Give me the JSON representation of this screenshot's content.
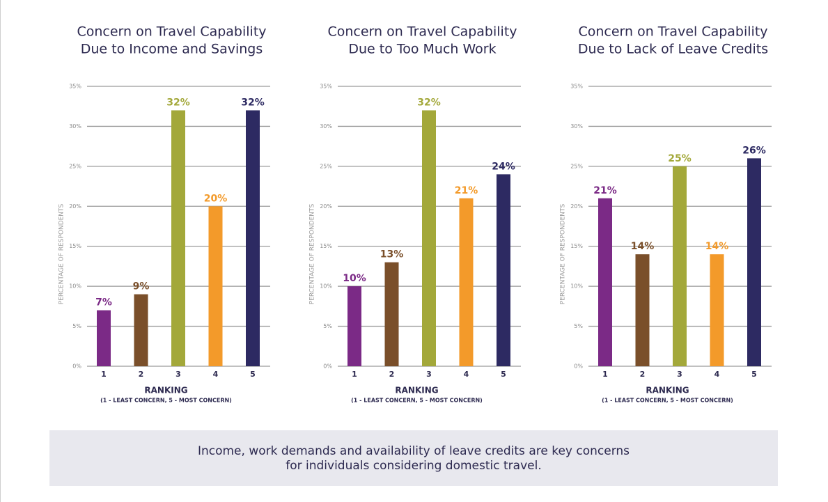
{
  "chart_data": [
    {
      "type": "bar",
      "title": [
        "Concern on Travel Capability",
        "Due to Income and Savings"
      ],
      "ylabel": "PERCENTAGE OF RESPONDENTS",
      "xlabel": "RANKING",
      "xsublabel": "(1 - LEAST CONCERN, 5 - MOST CONCERN)",
      "categories": [
        "1",
        "2",
        "3",
        "4",
        "5"
      ],
      "values": [
        7,
        9,
        32,
        20,
        32
      ],
      "value_labels": [
        "7%",
        "9%",
        "32%",
        "20%",
        "32%"
      ],
      "colors": [
        "#7b2a86",
        "#7a4f2a",
        "#a3a83a",
        "#f39a2a",
        "#2d2a62"
      ],
      "ylim": [
        0,
        35
      ],
      "yticks": [
        {
          "value": 0,
          "label": "0%"
        },
        {
          "value": 5,
          "label": "5%"
        },
        {
          "value": 10,
          "label": "10%"
        },
        {
          "value": 15,
          "label": "15%"
        },
        {
          "value": 20,
          "label": "20%"
        },
        {
          "value": 25,
          "label": "25%"
        },
        {
          "value": 30,
          "label": "30%"
        },
        {
          "value": 35,
          "label": "35%"
        }
      ],
      "grid": true
    },
    {
      "type": "bar",
      "title": [
        "Concern on Travel Capability",
        "Due to Too Much Work"
      ],
      "ylabel": "PERCENTAGE OF RESPONDENTS",
      "xlabel": "RANKING",
      "xsublabel": "(1 - LEAST CONCERN, 5 - MOST CONCERN)",
      "categories": [
        "1",
        "2",
        "3",
        "4",
        "5"
      ],
      "values": [
        10,
        13,
        32,
        21,
        24
      ],
      "value_labels": [
        "10%",
        "13%",
        "32%",
        "21%",
        "24%"
      ],
      "colors": [
        "#7b2a86",
        "#7a4f2a",
        "#a3a83a",
        "#f39a2a",
        "#2d2a62"
      ],
      "ylim": [
        0,
        35
      ],
      "yticks": [
        {
          "value": 0,
          "label": "0%"
        },
        {
          "value": 5,
          "label": "5%"
        },
        {
          "value": 10,
          "label": "10%"
        },
        {
          "value": 15,
          "label": "15%"
        },
        {
          "value": 20,
          "label": "20%"
        },
        {
          "value": 25,
          "label": "25%"
        },
        {
          "value": 30,
          "label": "30%"
        },
        {
          "value": 35,
          "label": "35%"
        }
      ],
      "grid": true
    },
    {
      "type": "bar",
      "title": [
        "Concern on Travel Capability",
        "Due to Lack of Leave Credits"
      ],
      "ylabel": "PERCENTAGE OF RESPONDENTS",
      "xlabel": "RANKING",
      "xsublabel": "(1 - LEAST CONCERN, 5 - MOST CONCERN)",
      "categories": [
        "1",
        "2",
        "3",
        "4",
        "5"
      ],
      "values": [
        21,
        14,
        25,
        14,
        26
      ],
      "value_labels": [
        "21%",
        "14%",
        "25%",
        "14%",
        "26%"
      ],
      "colors": [
        "#7b2a86",
        "#7a4f2a",
        "#a3a83a",
        "#f39a2a",
        "#2d2a62"
      ],
      "ylim": [
        0,
        35
      ],
      "yticks": [
        {
          "value": 0,
          "label": "0%"
        },
        {
          "value": 5,
          "label": "5%"
        },
        {
          "value": 10,
          "label": "10%"
        },
        {
          "value": 15,
          "label": "15%"
        },
        {
          "value": 20,
          "label": "20%"
        },
        {
          "value": 25,
          "label": "25%"
        },
        {
          "value": 30,
          "label": "30%"
        },
        {
          "value": 35,
          "label": "35%"
        }
      ],
      "grid": true
    }
  ],
  "caption": [
    "Income, work demands and availability of leave credits are key concerns",
    "for individuals considering domestic travel."
  ]
}
